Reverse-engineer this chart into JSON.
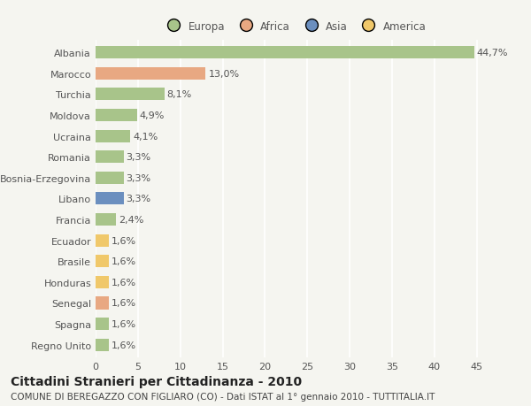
{
  "countries": [
    "Albania",
    "Marocco",
    "Turchia",
    "Moldova",
    "Ucraina",
    "Romania",
    "Bosnia-Erzegovina",
    "Libano",
    "Francia",
    "Ecuador",
    "Brasile",
    "Honduras",
    "Senegal",
    "Spagna",
    "Regno Unito"
  ],
  "values": [
    44.7,
    13.0,
    8.1,
    4.9,
    4.1,
    3.3,
    3.3,
    3.3,
    2.4,
    1.6,
    1.6,
    1.6,
    1.6,
    1.6,
    1.6
  ],
  "labels": [
    "44,7%",
    "13,0%",
    "8,1%",
    "4,9%",
    "4,1%",
    "3,3%",
    "3,3%",
    "3,3%",
    "2,4%",
    "1,6%",
    "1,6%",
    "1,6%",
    "1,6%",
    "1,6%",
    "1,6%"
  ],
  "continent": [
    "Europa",
    "Africa",
    "Europa",
    "Europa",
    "Europa",
    "Europa",
    "Europa",
    "Asia",
    "Europa",
    "America",
    "America",
    "America",
    "Africa",
    "Europa",
    "Europa"
  ],
  "colors": {
    "Europa": "#a8c48a",
    "Africa": "#e8a882",
    "Asia": "#6b8fbf",
    "America": "#f0c86a"
  },
  "xlim": [
    0,
    47
  ],
  "xticks": [
    0,
    5,
    10,
    15,
    20,
    25,
    30,
    35,
    40,
    45
  ],
  "title": "Cittadini Stranieri per Cittadinanza - 2010",
  "subtitle": "COMUNE DI BEREGAZZO CON FIGLIARO (CO) - Dati ISTAT al 1° gennaio 2010 - TUTTITALIA.IT",
  "background_color": "#f5f5f0",
  "bar_height": 0.6,
  "title_fontsize": 10,
  "subtitle_fontsize": 7.5,
  "label_fontsize": 8,
  "tick_fontsize": 8,
  "legend_entries": [
    "Europa",
    "Africa",
    "Asia",
    "America"
  ]
}
